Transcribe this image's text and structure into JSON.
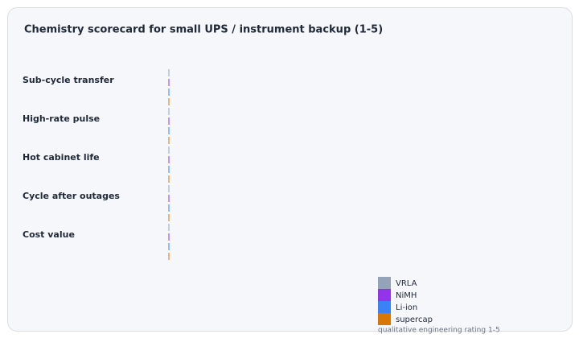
{
  "chart_data": {
    "type": "bar",
    "orientation": "horizontal",
    "title": "Chemistry scorecard for small UPS / instrument backup (1-5)",
    "categories": [
      "Sub-cycle transfer",
      "High-rate pulse",
      "Hot cabinet life",
      "Cycle after outages",
      "Cost value"
    ],
    "series": [
      {
        "name": "VRLA",
        "color": "#94a3b8",
        "values": [
          0,
          0,
          0,
          0,
          0
        ]
      },
      {
        "name": "NiMH",
        "color": "#9333ea",
        "values": [
          0,
          0,
          0,
          0,
          0
        ]
      },
      {
        "name": "Li-ion",
        "color": "#3b82f6",
        "values": [
          0,
          0,
          0,
          0,
          0
        ]
      },
      {
        "name": "supercap",
        "color": "#d97706",
        "values": [
          0,
          0,
          0,
          0,
          0
        ]
      }
    ],
    "xlim": [
      0,
      5
    ],
    "note": "qualitative engineering rating 1-5"
  }
}
